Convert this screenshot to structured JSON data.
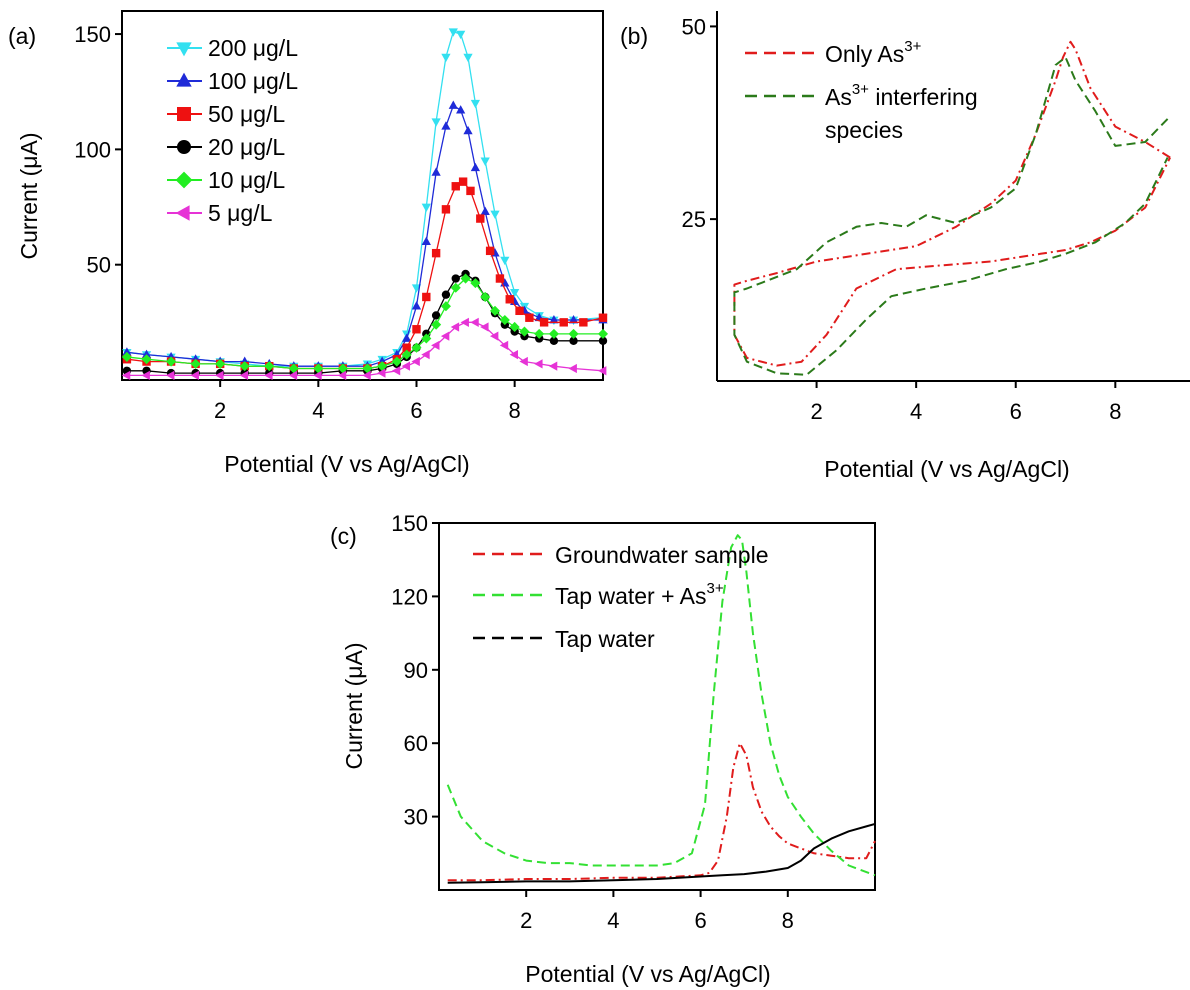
{
  "chart_data": [
    {
      "panel": "(a)",
      "type": "line",
      "xlabel": "Potential (V vs Ag/AgCl)",
      "ylabel": "Current (μA)",
      "xlim": [
        0,
        9.8
      ],
      "ylim": [
        0,
        160
      ],
      "xticks": [
        2,
        4,
        6,
        8
      ],
      "yticks": [
        50,
        100,
        150
      ],
      "legend_position": "top-left",
      "grid": false,
      "series": [
        {
          "name": "200 μg/L",
          "color": "#33e0f0",
          "marker": "triangle-down",
          "x": [
            0.1,
            0.5,
            1,
            1.5,
            2,
            2.5,
            3,
            3.5,
            4,
            4.5,
            5,
            5.3,
            5.6,
            5.8,
            6,
            6.2,
            6.4,
            6.6,
            6.75,
            6.9,
            7.05,
            7.2,
            7.4,
            7.6,
            7.8,
            8,
            8.2,
            8.5,
            8.8,
            9.2,
            9.8
          ],
          "y": [
            12,
            11,
            10,
            9,
            8,
            7,
            6,
            6,
            6,
            6,
            7,
            9,
            12,
            20,
            40,
            75,
            112,
            140,
            151,
            150,
            140,
            120,
            95,
            72,
            52,
            38,
            32,
            28,
            26,
            26,
            27
          ]
        },
        {
          "name": "100 μg/L",
          "color": "#1f2bd8",
          "marker": "triangle-up",
          "x": [
            0.1,
            0.5,
            1,
            1.5,
            2,
            2.5,
            3,
            3.5,
            4,
            4.5,
            5,
            5.3,
            5.6,
            5.8,
            6,
            6.2,
            6.4,
            6.6,
            6.75,
            6.9,
            7.05,
            7.2,
            7.4,
            7.6,
            7.8,
            8,
            8.2,
            8.5,
            8.8,
            9.2,
            9.8
          ],
          "y": [
            12,
            11,
            10,
            9,
            8,
            8,
            7,
            6,
            6,
            6,
            6,
            8,
            11,
            18,
            32,
            60,
            90,
            110,
            119,
            117,
            108,
            92,
            73,
            55,
            42,
            34,
            30,
            27,
            26,
            26,
            26
          ]
        },
        {
          "name": "50 μg/L",
          "color": "#ee1111",
          "marker": "square",
          "x": [
            0.1,
            0.5,
            1,
            1.5,
            2,
            2.5,
            3,
            3.5,
            4,
            4.5,
            5,
            5.3,
            5.6,
            5.8,
            6,
            6.2,
            6.4,
            6.6,
            6.8,
            6.95,
            7.1,
            7.3,
            7.5,
            7.7,
            7.9,
            8.1,
            8.3,
            8.6,
            9,
            9.4,
            9.8
          ],
          "y": [
            9,
            8,
            8,
            7,
            7,
            6,
            6,
            5,
            5,
            5,
            5,
            6,
            9,
            14,
            22,
            36,
            55,
            74,
            84,
            86,
            82,
            70,
            56,
            44,
            35,
            30,
            27,
            25,
            25,
            25,
            27
          ]
        },
        {
          "name": "20 μg/L",
          "color": "#000000",
          "marker": "circle",
          "x": [
            0.1,
            0.5,
            1,
            1.5,
            2,
            2.5,
            3,
            3.5,
            4,
            4.5,
            5,
            5.3,
            5.6,
            5.8,
            6,
            6.2,
            6.4,
            6.6,
            6.8,
            7,
            7.2,
            7.4,
            7.6,
            7.8,
            8,
            8.2,
            8.5,
            8.8,
            9.2,
            9.8
          ],
          "y": [
            4,
            4,
            3,
            3,
            3,
            3,
            3,
            3,
            3,
            4,
            4,
            5,
            7,
            10,
            14,
            20,
            28,
            37,
            44,
            46,
            43,
            36,
            29,
            24,
            21,
            19,
            18,
            17,
            17,
            17
          ]
        },
        {
          "name": "10 μg/L",
          "color": "#22ee22",
          "marker": "diamond",
          "x": [
            0.1,
            0.5,
            1,
            1.5,
            2,
            2.5,
            3,
            3.5,
            4,
            4.5,
            5,
            5.3,
            5.6,
            5.8,
            6,
            6.2,
            6.4,
            6.6,
            6.8,
            7,
            7.2,
            7.4,
            7.6,
            7.8,
            8,
            8.2,
            8.5,
            8.8,
            9.2,
            9.8
          ],
          "y": [
            10,
            9,
            8,
            7,
            7,
            6,
            6,
            5,
            5,
            5,
            5,
            6,
            8,
            11,
            14,
            18,
            24,
            32,
            40,
            44,
            42,
            36,
            30,
            26,
            23,
            21,
            20,
            20,
            20,
            20
          ]
        },
        {
          "name": "5 μg/L",
          "color": "#e633d6",
          "marker": "triangle-left",
          "x": [
            0.1,
            0.5,
            1,
            1.5,
            2,
            2.5,
            3,
            3.5,
            4,
            4.5,
            5,
            5.3,
            5.6,
            5.8,
            6,
            6.2,
            6.4,
            6.6,
            6.8,
            7,
            7.2,
            7.4,
            7.6,
            7.8,
            8,
            8.2,
            8.5,
            8.8,
            9.2,
            9.8
          ],
          "y": [
            2,
            2,
            2,
            2,
            2,
            2,
            2,
            2,
            2,
            2,
            2,
            3,
            4,
            6,
            8,
            11,
            15,
            19,
            23,
            25,
            25,
            23,
            19,
            15,
            11,
            8,
            7,
            6,
            5,
            4
          ]
        }
      ]
    },
    {
      "panel": "(b)",
      "type": "line",
      "xlabel": "Potential (V vs Ag/AgCl)",
      "ylabel": "",
      "xlim": [
        0,
        9.5
      ],
      "ylim": [
        4,
        52
      ],
      "xticks": [
        2,
        4,
        6,
        8
      ],
      "yticks": [
        25,
        50
      ],
      "legend_position": "top-left",
      "grid": false,
      "series": [
        {
          "name": "Only As",
          "name_superscript": "3+",
          "color": "#e01c1c",
          "dash": "dashdot",
          "x": [
            9.1,
            8.6,
            8.0,
            7.5,
            7.2,
            7.1,
            6.95,
            6.8,
            6.4,
            6.0,
            5.5,
            4.8,
            4.0,
            3.0,
            2.0,
            1.2,
            0.6,
            0.35,
            0.35,
            0.6,
            1.2,
            1.7,
            2.2,
            2.8,
            3.6,
            4.5,
            5.5,
            6.0,
            6.5,
            7.0,
            7.5,
            8.0,
            8.6,
            9.1
          ],
          "y": [
            33,
            35,
            37,
            42,
            47,
            48,
            46,
            43,
            36,
            30,
            27,
            24,
            21.5,
            20.5,
            19.5,
            18,
            17,
            16.5,
            10,
            7,
            6,
            6.5,
            10,
            16,
            18.5,
            19,
            19.5,
            20,
            20.5,
            21,
            22,
            23.5,
            26.5,
            33
          ]
        },
        {
          "name": "As",
          "name_superscript": "3+",
          "name_suffix": " interfering",
          "name_line2": "species",
          "color": "#2b7a1a",
          "dash": "dashed",
          "x": [
            9.05,
            8.6,
            8.0,
            7.6,
            7.2,
            7.0,
            6.8,
            6.4,
            6.0,
            5.5,
            4.8,
            4.2,
            3.8,
            3.3,
            2.8,
            2.2,
            1.6,
            1.0,
            0.6,
            0.35,
            0.35,
            0.6,
            1.2,
            1.8,
            2.4,
            3.0,
            3.5,
            4.2,
            5.0,
            5.8,
            6.5,
            7.0,
            7.6,
            8.2,
            8.6,
            9.05
          ],
          "y": [
            38,
            35,
            34.5,
            39,
            43,
            46,
            45,
            36,
            29,
            26.5,
            24.5,
            25.5,
            24,
            24.5,
            24,
            22,
            18.5,
            17,
            16,
            15.5,
            10,
            6.5,
            5,
            4.8,
            8,
            12,
            15,
            16,
            17,
            18.5,
            19.5,
            20.5,
            22,
            24.5,
            27,
            33
          ]
        }
      ]
    },
    {
      "panel": "(c)",
      "type": "line",
      "xlabel": "Potential (V vs Ag/AgCl)",
      "ylabel": "Current (μA)",
      "xlim": [
        0,
        10
      ],
      "ylim": [
        0,
        150
      ],
      "xticks": [
        2,
        4,
        6,
        8
      ],
      "yticks": [
        30,
        60,
        90,
        120,
        150
      ],
      "legend_position": "top-left",
      "grid": false,
      "series": [
        {
          "name": "Groundwater sample",
          "color": "#e01c1c",
          "dash": "dashdot",
          "x": [
            0.2,
            1,
            2,
            3,
            4,
            5,
            5.5,
            6,
            6.2,
            6.4,
            6.6,
            6.75,
            6.9,
            7.05,
            7.2,
            7.4,
            7.6,
            7.8,
            8,
            8.3,
            8.6,
            9,
            9.4,
            9.8,
            10
          ],
          "y": [
            4,
            4,
            4.5,
            4.5,
            5,
            5,
            5.5,
            6,
            7,
            12,
            30,
            50,
            60,
            55,
            42,
            32,
            26,
            22,
            19,
            17,
            15,
            14,
            13,
            13,
            20
          ]
        },
        {
          "name": "Tap water + As",
          "name_superscript": "3+",
          "color": "#33e033",
          "dash": "dashed",
          "x": [
            0.2,
            0.5,
            1,
            1.5,
            2,
            2.5,
            3,
            3.5,
            4,
            4.5,
            5,
            5.4,
            5.8,
            6.1,
            6.3,
            6.5,
            6.7,
            6.85,
            6.95,
            7.05,
            7.2,
            7.4,
            7.6,
            7.8,
            8,
            8.3,
            8.6,
            9,
            9.4,
            10
          ],
          "y": [
            43,
            30,
            20,
            15,
            12,
            11,
            11,
            10,
            10,
            10,
            10,
            11,
            15,
            35,
            80,
            118,
            140,
            145,
            143,
            130,
            105,
            80,
            60,
            47,
            38,
            30,
            23,
            16,
            10,
            6
          ]
        },
        {
          "name": "Tap water",
          "color": "#000000",
          "dash": "solid",
          "x": [
            0.2,
            1,
            2,
            3,
            4,
            5,
            5.5,
            6,
            6.5,
            7,
            7.5,
            8,
            8.3,
            8.6,
            9,
            9.4,
            9.8,
            10
          ],
          "y": [
            3,
            3.2,
            3.5,
            3.5,
            4,
            4.5,
            5,
            5.5,
            6,
            6.5,
            7.5,
            9,
            12,
            17,
            21,
            24,
            26,
            27
          ]
        }
      ]
    }
  ]
}
